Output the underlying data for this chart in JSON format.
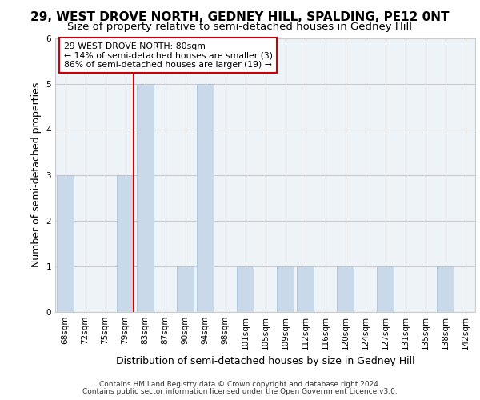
{
  "title1": "29, WEST DROVE NORTH, GEDNEY HILL, SPALDING, PE12 0NT",
  "title2": "Size of property relative to semi-detached houses in Gedney Hill",
  "xlabel": "Distribution of semi-detached houses by size in Gedney Hill",
  "ylabel": "Number of semi-detached properties",
  "categories": [
    "68sqm",
    "72sqm",
    "75sqm",
    "79sqm",
    "83sqm",
    "87sqm",
    "90sqm",
    "94sqm",
    "98sqm",
    "101sqm",
    "105sqm",
    "109sqm",
    "112sqm",
    "116sqm",
    "120sqm",
    "124sqm",
    "127sqm",
    "131sqm",
    "135sqm",
    "138sqm",
    "142sqm"
  ],
  "values": [
    3,
    0,
    0,
    3,
    5,
    0,
    1,
    5,
    0,
    1,
    0,
    1,
    1,
    0,
    1,
    0,
    1,
    0,
    0,
    1,
    0
  ],
  "bar_color": "#c9d9ea",
  "bar_edge_color": "#a8c4d8",
  "highlight_line_index": 3,
  "annotation_line1": "29 WEST DROVE NORTH: 80sqm",
  "annotation_line2": "← 14% of semi-detached houses are smaller (3)",
  "annotation_line3": "86% of semi-detached houses are larger (19) →",
  "annotation_box_color": "#ffffff",
  "annotation_box_edge": "#cc0000",
  "vline_color": "#cc0000",
  "ylim": [
    0,
    6
  ],
  "yticks": [
    0,
    1,
    2,
    3,
    4,
    5,
    6
  ],
  "grid_color": "#cccccc",
  "footer1": "Contains HM Land Registry data © Crown copyright and database right 2024.",
  "footer2": "Contains public sector information licensed under the Open Government Licence v3.0.",
  "plot_bg_color": "#eef3f8",
  "fig_bg_color": "#ffffff",
  "title1_fontsize": 11,
  "title2_fontsize": 9.5,
  "tick_fontsize": 7.5,
  "axis_label_fontsize": 9,
  "footer_fontsize": 6.5
}
